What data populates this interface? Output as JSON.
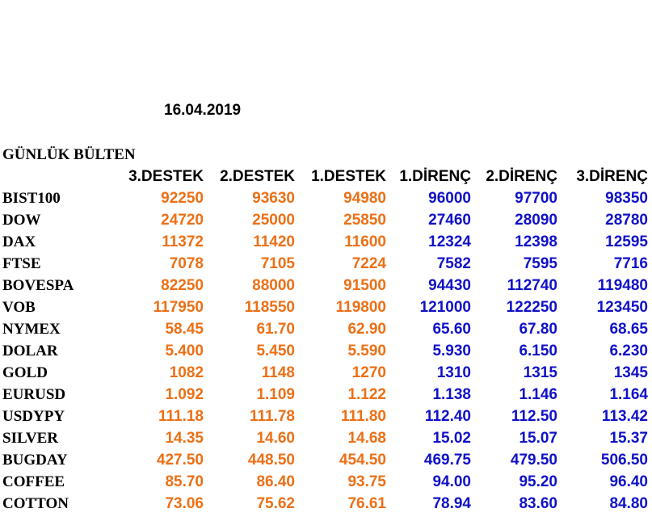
{
  "date": "16.04.2019",
  "title": "GÜNLÜK BÜLTEN",
  "headers": [
    "3.DESTEK",
    "2.DESTEK",
    "1.DESTEK",
    "1.DİRENÇ",
    "2.DİRENÇ",
    "3.DİRENÇ"
  ],
  "colors": {
    "support": "#ec7016",
    "resistance": "#1010c8"
  },
  "rows": [
    {
      "name": "BIST100",
      "values": [
        "92250",
        "93630",
        "94980",
        "96000",
        "97700",
        "98350"
      ]
    },
    {
      "name": "DOW",
      "values": [
        "24720",
        "25000",
        "25850",
        "27460",
        "28090",
        "28780"
      ]
    },
    {
      "name": "DAX",
      "values": [
        "11372",
        "11420",
        "11600",
        "12324",
        "12398",
        "12595"
      ]
    },
    {
      "name": "FTSE",
      "values": [
        "7078",
        "7105",
        "7224",
        "7582",
        "7595",
        "7716"
      ]
    },
    {
      "name": "BOVESPA",
      "values": [
        "82250",
        "88000",
        "91500",
        "94430",
        "112740",
        "119480"
      ]
    },
    {
      "name": "VOB",
      "values": [
        "117950",
        "118550",
        "119800",
        "121000",
        "122250",
        "123450"
      ]
    },
    {
      "name": "NYMEX",
      "values": [
        "58.45",
        "61.70",
        "62.90",
        "65.60",
        "67.80",
        "68.65"
      ]
    },
    {
      "name": "DOLAR",
      "values": [
        "5.400",
        "5.450",
        "5.590",
        "5.930",
        "6.150",
        "6.230"
      ]
    },
    {
      "name": "GOLD",
      "values": [
        "1082",
        "1148",
        "1270",
        "1310",
        "1315",
        "1345"
      ]
    },
    {
      "name": "EURUSD",
      "values": [
        "1.092",
        "1.109",
        "1.122",
        "1.138",
        "1.146",
        "1.164"
      ]
    },
    {
      "name": "USDYPY",
      "values": [
        "111.18",
        "111.78",
        "111.80",
        "112.40",
        "112.50",
        "113.42"
      ]
    },
    {
      "name": "SILVER",
      "values": [
        "14.35",
        "14.60",
        "14.68",
        "15.02",
        "15.07",
        "15.37"
      ]
    },
    {
      "name": "BUGDAY",
      "values": [
        "427.50",
        "448.50",
        "454.50",
        "469.75",
        "479.50",
        "506.50"
      ]
    },
    {
      "name": "COFFEE",
      "values": [
        "85.70",
        "86.40",
        "93.75",
        "94.00",
        "95.20",
        "96.40"
      ]
    },
    {
      "name": "COTTON",
      "values": [
        "73.06",
        "75.62",
        "76.61",
        "78.94",
        "83.60",
        "84.80"
      ]
    }
  ]
}
